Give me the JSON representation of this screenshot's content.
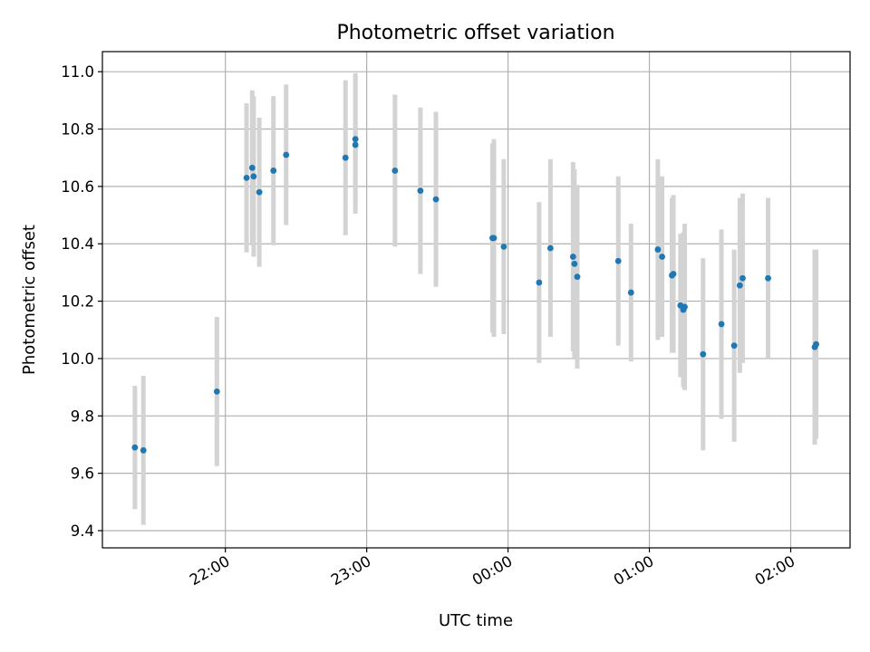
{
  "chart_data": {
    "type": "scatter",
    "title": "Photometric offset variation",
    "xlabel": "UTC time",
    "ylabel": "Photometric offset",
    "x_unit": "UTC time (hours after 00:00; negative = before midnight)",
    "xlim": [
      -2.87,
      2.42
    ],
    "ylim": [
      9.34,
      11.07
    ],
    "grid": true,
    "x_ticks": [
      {
        "value": -2.0,
        "label": "22:00"
      },
      {
        "value": -1.0,
        "label": "23:00"
      },
      {
        "value": 0.0,
        "label": "00:00"
      },
      {
        "value": 1.0,
        "label": "01:00"
      },
      {
        "value": 2.0,
        "label": "02:00"
      }
    ],
    "y_ticks": [
      {
        "value": 9.4,
        "label": "9.4"
      },
      {
        "value": 9.6,
        "label": "9.6"
      },
      {
        "value": 9.8,
        "label": "9.8"
      },
      {
        "value": 10.0,
        "label": "10.0"
      },
      {
        "value": 10.2,
        "label": "10.2"
      },
      {
        "value": 10.4,
        "label": "10.4"
      },
      {
        "value": 10.6,
        "label": "10.6"
      },
      {
        "value": 10.8,
        "label": "10.8"
      },
      {
        "value": 11.0,
        "label": "11.0"
      }
    ],
    "marker_color": "#1f77b4",
    "errorbar_color": "#d3d3d3",
    "points": [
      {
        "x": -2.64,
        "y": 9.69,
        "err": 0.215
      },
      {
        "x": -2.58,
        "y": 9.68,
        "err": 0.26
      },
      {
        "x": -2.06,
        "y": 9.885,
        "err": 0.26
      },
      {
        "x": -1.85,
        "y": 10.63,
        "err": 0.26
      },
      {
        "x": -1.81,
        "y": 10.665,
        "err": 0.27
      },
      {
        "x": -1.8,
        "y": 10.635,
        "err": 0.28
      },
      {
        "x": -1.76,
        "y": 10.58,
        "err": 0.26
      },
      {
        "x": -1.66,
        "y": 10.655,
        "err": 0.26
      },
      {
        "x": -1.57,
        "y": 10.71,
        "err": 0.245
      },
      {
        "x": -1.15,
        "y": 10.7,
        "err": 0.27
      },
      {
        "x": -1.08,
        "y": 10.765,
        "err": 0.23
      },
      {
        "x": -1.08,
        "y": 10.745,
        "err": 0.24
      },
      {
        "x": -0.8,
        "y": 10.655,
        "err": 0.265
      },
      {
        "x": -0.62,
        "y": 10.585,
        "err": 0.29
      },
      {
        "x": -0.51,
        "y": 10.555,
        "err": 0.305
      },
      {
        "x": -0.11,
        "y": 10.42,
        "err": 0.33
      },
      {
        "x": -0.1,
        "y": 10.42,
        "err": 0.345
      },
      {
        "x": -0.03,
        "y": 10.39,
        "err": 0.305
      },
      {
        "x": 0.22,
        "y": 10.265,
        "err": 0.28
      },
      {
        "x": 0.3,
        "y": 10.385,
        "err": 0.31
      },
      {
        "x": 0.46,
        "y": 10.355,
        "err": 0.33
      },
      {
        "x": 0.47,
        "y": 10.33,
        "err": 0.33
      },
      {
        "x": 0.49,
        "y": 10.285,
        "err": 0.32
      },
      {
        "x": 0.78,
        "y": 10.34,
        "err": 0.295
      },
      {
        "x": 0.87,
        "y": 10.23,
        "err": 0.24
      },
      {
        "x": 1.06,
        "y": 10.38,
        "err": 0.315
      },
      {
        "x": 1.09,
        "y": 10.355,
        "err": 0.28
      },
      {
        "x": 1.16,
        "y": 10.29,
        "err": 0.27
      },
      {
        "x": 1.17,
        "y": 10.295,
        "err": 0.275
      },
      {
        "x": 1.22,
        "y": 10.185,
        "err": 0.25
      },
      {
        "x": 1.24,
        "y": 10.17,
        "err": 0.27
      },
      {
        "x": 1.25,
        "y": 10.18,
        "err": 0.29
      },
      {
        "x": 1.38,
        "y": 10.015,
        "err": 0.335
      },
      {
        "x": 1.51,
        "y": 10.12,
        "err": 0.33
      },
      {
        "x": 1.6,
        "y": 10.045,
        "err": 0.335
      },
      {
        "x": 1.64,
        "y": 10.255,
        "err": 0.305
      },
      {
        "x": 1.66,
        "y": 10.28,
        "err": 0.295
      },
      {
        "x": 1.84,
        "y": 10.28,
        "err": 0.28
      },
      {
        "x": 2.17,
        "y": 10.04,
        "err": 0.34
      },
      {
        "x": 2.18,
        "y": 10.05,
        "err": 0.33
      }
    ]
  }
}
